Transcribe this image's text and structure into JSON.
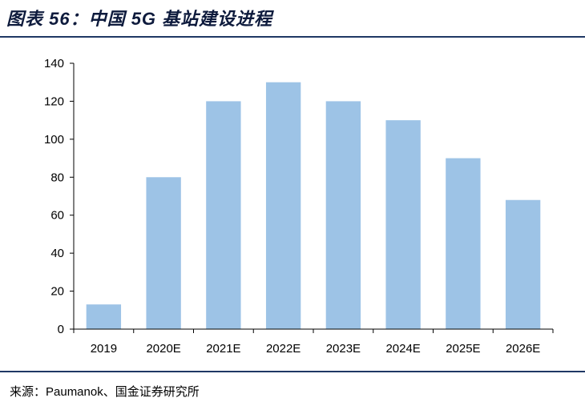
{
  "header": {
    "title": "图表 56：中国 5G 基站建设进程"
  },
  "footer": {
    "source": "来源：Paumanok、国金证券研究所"
  },
  "colors": {
    "bar": "#9dc3e6",
    "rule": "#1f3864",
    "axis": "#000000"
  },
  "chart_data": {
    "type": "bar",
    "title": "",
    "xlabel": "",
    "ylabel": "",
    "categories": [
      "2019",
      "2020E",
      "2021E",
      "2022E",
      "2023E",
      "2024E",
      "2025E",
      "2026E"
    ],
    "values": [
      13,
      80,
      120,
      130,
      120,
      110,
      90,
      68
    ],
    "ylim": [
      0,
      140
    ],
    "yticks": [
      0,
      20,
      40,
      60,
      80,
      100,
      120,
      140
    ],
    "grid": false,
    "legend": "none"
  }
}
